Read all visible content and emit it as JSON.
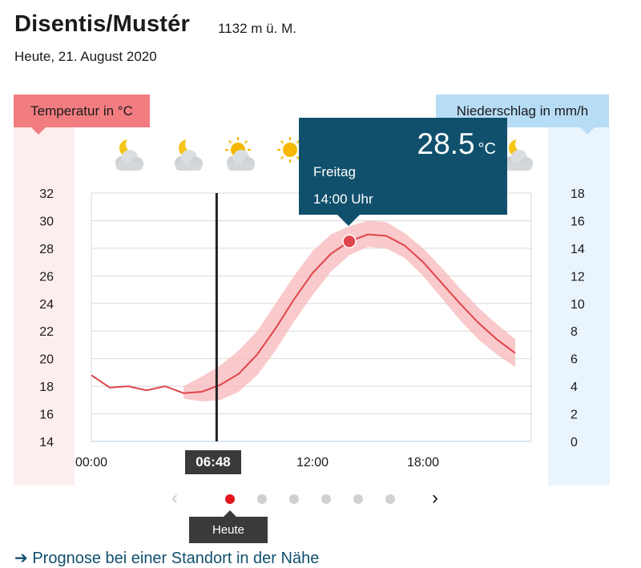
{
  "header": {
    "location": "Disentis/Mustér",
    "altitude": "1132 m ü. M.",
    "date": "Heute, 21. August 2020"
  },
  "axis_labels": {
    "temperature": "Temperatur in °C",
    "precipitation": "Niederschlag in mm/h"
  },
  "weather_icons": [
    "cloudy-night-icon",
    "partly-cloudy-night-icon",
    "partly-sunny-icon",
    "sunny-icon",
    "partly-cloudy-night-icon"
  ],
  "tooltip": {
    "value": "28.5",
    "unit": "°C",
    "day": "Freitag",
    "time": "14:00 Uhr"
  },
  "now_marker": {
    "time_label": "06:48",
    "hour": 6.8
  },
  "navigation": {
    "prev_glyph": "‹",
    "next_glyph": "›",
    "dots_count": 6,
    "active_dot": 0,
    "today_label": "Heute"
  },
  "bottom_link": "Prognose bei einer Standort in der Nähe",
  "colors": {
    "temperature_line": "#e0454b",
    "temperature_band": "#f7b7ba",
    "tooltip_bg": "#10506d",
    "now_line": "#222222"
  },
  "chart_data": {
    "type": "line",
    "x_ticks": [
      "00:00",
      "06:48",
      "12:00",
      "18:00"
    ],
    "x_range": [
      0,
      23
    ],
    "y_left": {
      "label": "Temperatur in °C",
      "ticks": [
        14,
        16,
        18,
        20,
        22,
        24,
        26,
        28,
        30,
        32
      ],
      "range": [
        14,
        32
      ]
    },
    "y_right": {
      "label": "Niederschlag in mm/h",
      "ticks": [
        0,
        2,
        4,
        6,
        8,
        10,
        12,
        14,
        16,
        18
      ],
      "range": [
        0,
        18
      ]
    },
    "series": [
      {
        "x": [
          0,
          1,
          2,
          3,
          4,
          5,
          6,
          7,
          8,
          9,
          10,
          11,
          12,
          13,
          14,
          15,
          16,
          17,
          18,
          19,
          20,
          21,
          22,
          23
        ],
        "values": [
          18.8,
          17.9,
          18.0,
          17.7,
          18.0,
          17.5,
          17.6,
          18.1,
          18.9,
          20.3,
          22.2,
          24.3,
          26.2,
          27.6,
          28.5,
          29.0,
          28.9,
          28.2,
          27.0,
          25.5,
          24.0,
          22.6,
          21.4,
          20.4
        ]
      }
    ],
    "uncertainty_band": {
      "x": [
        5,
        6,
        7,
        8,
        9,
        10,
        11,
        12,
        13,
        14,
        15,
        16,
        17,
        18,
        19,
        20,
        21,
        22,
        23
      ],
      "upper": [
        18.0,
        18.7,
        19.5,
        20.6,
        22.0,
        24.0,
        26.0,
        27.8,
        29.0,
        29.6,
        30.0,
        29.9,
        29.1,
        28.0,
        26.6,
        25.1,
        23.7,
        22.5,
        21.4
      ],
      "lower": [
        17.1,
        16.9,
        17.0,
        17.6,
        18.8,
        20.6,
        22.7,
        24.6,
        26.3,
        27.5,
        28.1,
        28.0,
        27.3,
        26.0,
        24.4,
        22.8,
        21.4,
        20.3,
        19.4
      ]
    },
    "highlight_point": {
      "x": 14,
      "y": 28.5
    }
  }
}
